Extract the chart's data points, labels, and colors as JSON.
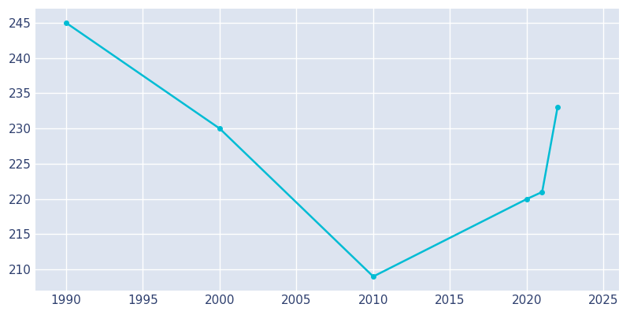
{
  "years": [
    1990,
    2000,
    2010,
    2020,
    2021,
    2022
  ],
  "population": [
    245,
    230,
    209,
    220,
    221,
    233
  ],
  "line_color": "#00bcd4",
  "marker_color": "#00bcd4",
  "axes_background_color": "#dde4f0",
  "figure_background_color": "#ffffff",
  "grid_color": "#ffffff",
  "xlim": [
    1988,
    2026
  ],
  "ylim": [
    207,
    247
  ],
  "xticks": [
    1990,
    1995,
    2000,
    2005,
    2010,
    2015,
    2020,
    2025
  ],
  "yticks": [
    210,
    215,
    220,
    225,
    230,
    235,
    240,
    245
  ],
  "tick_label_color": "#2e3f6e",
  "tick_fontsize": 11,
  "line_width": 1.8,
  "marker_size": 4
}
